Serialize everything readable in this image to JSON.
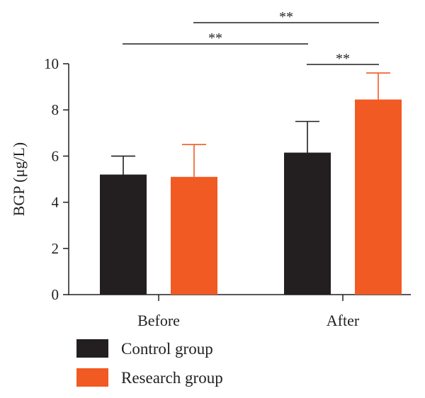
{
  "chart_data": {
    "type": "bar",
    "title": "",
    "xlabel": "",
    "ylabel": "BGP (μg/L)",
    "ylim": [
      0,
      10
    ],
    "yticks": [
      0,
      2,
      4,
      6,
      8,
      10
    ],
    "categories": [
      "Before",
      "After"
    ],
    "series": [
      {
        "name": "Control group",
        "color": "#231f20",
        "values": [
          5.2,
          6.15
        ],
        "errors": [
          0.8,
          1.35
        ]
      },
      {
        "name": "Research group",
        "color": "#f15a22",
        "values": [
          5.1,
          8.45
        ],
        "errors": [
          1.4,
          1.15
        ]
      }
    ],
    "significance": [
      {
        "label": "**",
        "from_category": 0,
        "from_series": 0,
        "to_category": 1,
        "to_series": 0
      },
      {
        "label": "**",
        "from_category": 1,
        "from_series": 0,
        "to_category": 1,
        "to_series": 1
      },
      {
        "label": "**",
        "from_category": 0,
        "from_series": 1,
        "to_category": 1,
        "to_series": 1
      }
    ],
    "legend_position": "bottom-left"
  }
}
